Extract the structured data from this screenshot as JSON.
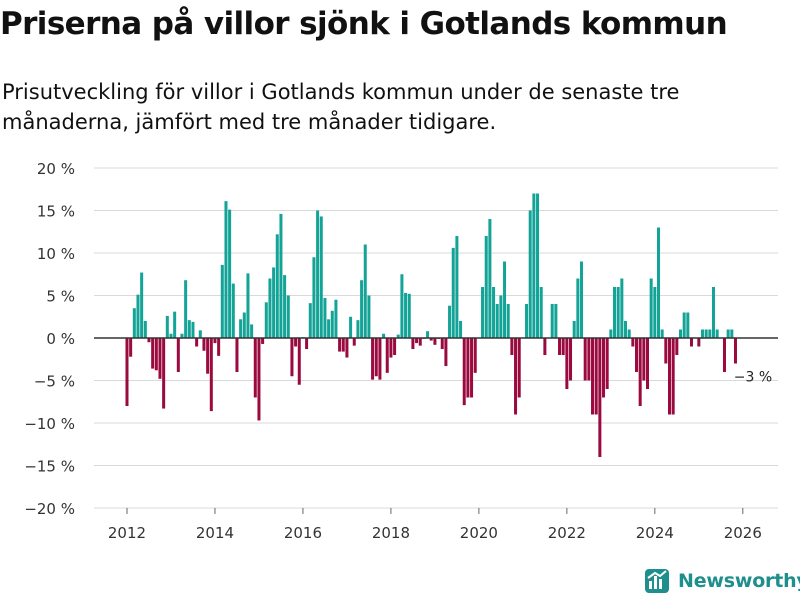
{
  "title": "Priserna på villor sjönk i Gotlands kommun",
  "subtitle": "Prisutveckling för villor i Gotlands kommun under de senaste tre månaderna, jämfört med tre månader tidigare.",
  "brand": {
    "name": "Newsworthy",
    "icon": "newsworthy-logo-icon"
  },
  "colors": {
    "positive": "#13a397",
    "negative": "#9b0a3e",
    "grid": "#d9d9d9",
    "zero": "#333333",
    "brand": "#1e8f8c"
  },
  "chart_data": {
    "type": "bar",
    "title": "Priserna på villor sjönk i Gotlands kommun",
    "xlabel": "",
    "ylabel": "",
    "ylim": [
      -20,
      20
    ],
    "xlim": [
      2011.25,
      2026.8
    ],
    "y_ticks": [
      20,
      15,
      10,
      5,
      0,
      -5,
      -10,
      -15,
      -20
    ],
    "y_tick_labels": [
      "20 %",
      "15 %",
      "10 %",
      "5 %",
      "0 %",
      "−5 %",
      "−10 %",
      "−15 %",
      "−20 %"
    ],
    "x_ticks": [
      2012,
      2014,
      2016,
      2018,
      2020,
      2022,
      2024,
      2026
    ],
    "x_tick_labels": [
      "2012",
      "2014",
      "2016",
      "2018",
      "2020",
      "2022",
      "2024",
      "2026"
    ],
    "series_start": "2012-01",
    "frequency": "monthly",
    "values": [
      -8,
      -2.2,
      3.5,
      5.1,
      7.7,
      2,
      -0.5,
      -3.6,
      -3.8,
      -4.8,
      -8.3,
      2.6,
      0.5,
      3.1,
      -4,
      0.5,
      6.8,
      2.1,
      1.9,
      -1,
      0.9,
      -1.5,
      -4.2,
      -8.6,
      -0.6,
      -2.1,
      8.6,
      16.1,
      15.1,
      6.4,
      -4,
      2.2,
      3,
      7.6,
      1.6,
      -7,
      -9.7,
      -0.7,
      4.2,
      7,
      8.3,
      12.2,
      14.6,
      7.4,
      5,
      -4.5,
      -1,
      -5.5,
      0.1,
      -1.3,
      4.1,
      9.5,
      15,
      14.3,
      4.7,
      2.2,
      3.2,
      4.5,
      -1.6,
      -1.6,
      -2.3,
      2.5,
      -0.9,
      2.1,
      6.8,
      11,
      5,
      -4.9,
      -4.5,
      -4.9,
      0.5,
      -4.1,
      -2.3,
      -2,
      0.4,
      7.5,
      5.3,
      5.2,
      -1.3,
      -0.6,
      -0.9,
      -0.1,
      0.8,
      -0.3,
      -0.8,
      -0.1,
      -1.3,
      -3.3,
      3.8,
      10.6,
      12,
      2,
      -7.9,
      -7,
      -7,
      -4.1,
      0,
      6,
      12,
      14,
      6,
      4,
      5,
      9,
      4,
      -2,
      -9,
      -7,
      0,
      4,
      15,
      17,
      17,
      6,
      -2,
      0,
      4,
      4,
      -2,
      -2,
      -6,
      -5,
      2,
      7,
      9,
      -5,
      -5,
      -9,
      -9,
      -14,
      -7,
      -6,
      1,
      6,
      6,
      7,
      2,
      1,
      -1,
      -4,
      -8,
      -5,
      -6,
      7,
      6,
      13,
      1,
      -3,
      -9,
      -9,
      -2,
      1,
      3,
      3,
      -1,
      0,
      -1,
      1,
      1,
      1,
      6,
      1,
      0,
      -4,
      1,
      1,
      -3
    ],
    "annotations": [
      {
        "text": "−3 %",
        "x": "2026-04",
        "y": -3
      }
    ]
  }
}
